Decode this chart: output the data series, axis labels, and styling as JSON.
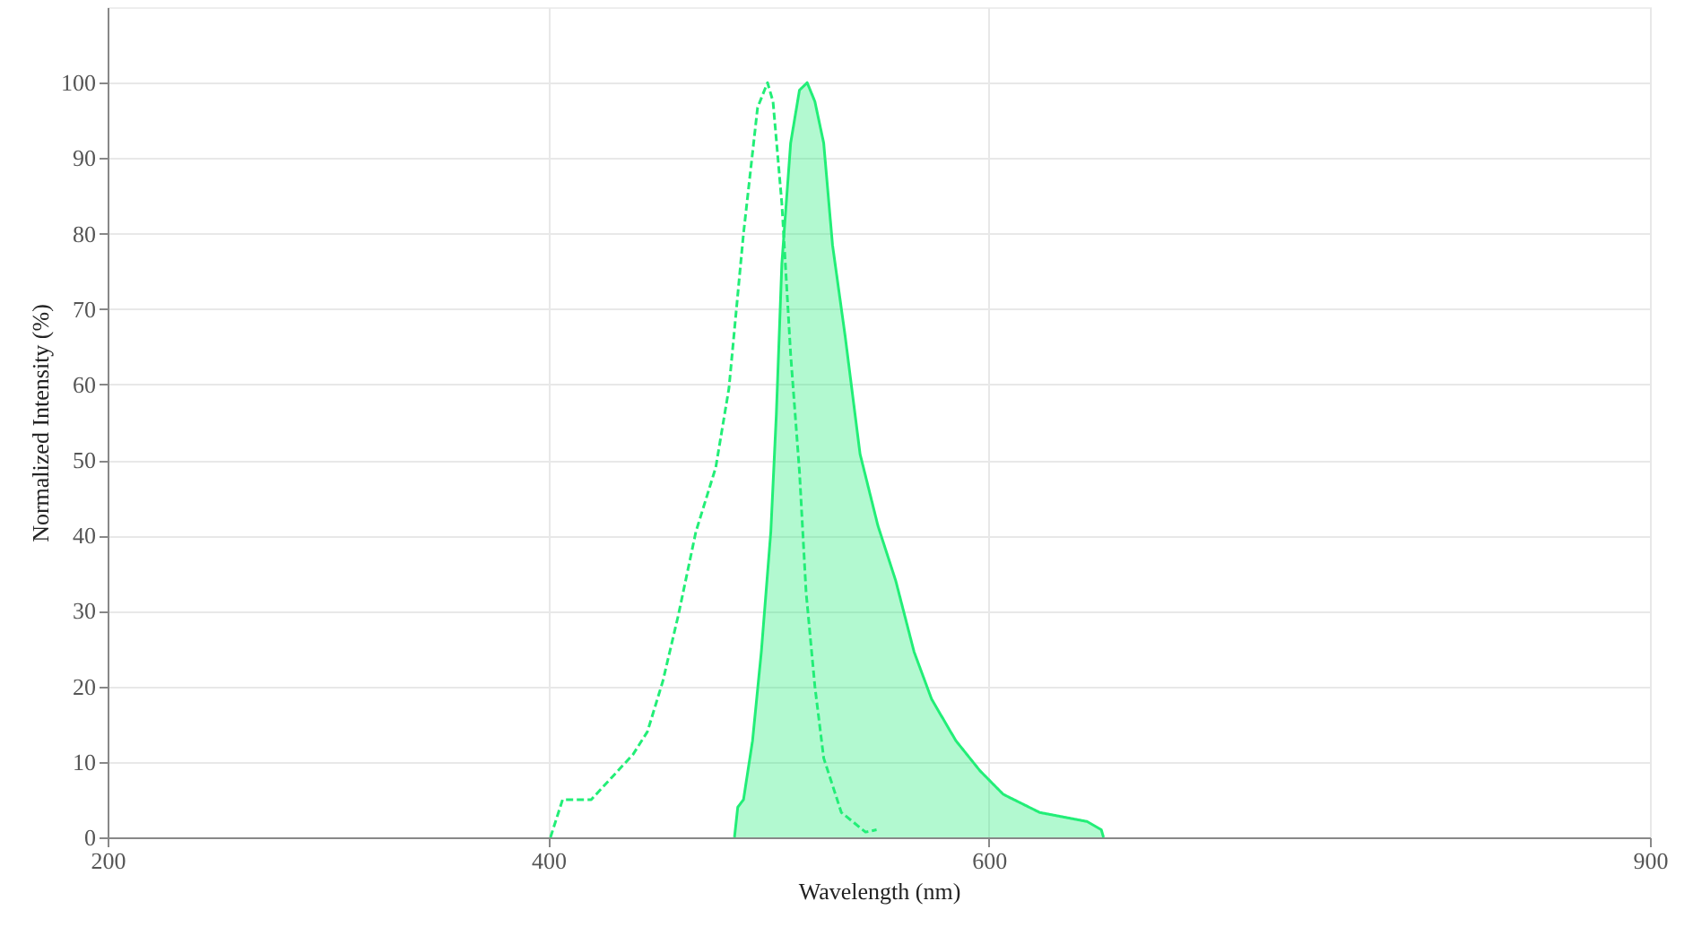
{
  "chart_data": {
    "type": "line",
    "xlabel": "Wavelength (nm)",
    "ylabel": "Normalized Intensity (%)",
    "xlim": [
      200,
      900
    ],
    "xticks": [
      200,
      400,
      600,
      900
    ],
    "ylim": [
      0,
      110
    ],
    "yticks": [
      0,
      10,
      20,
      30,
      40,
      50,
      60,
      70,
      80,
      90,
      100
    ],
    "grid": true,
    "series": [
      {
        "line_style": "dashed",
        "color": "#22ee77",
        "x": [
          401,
          406.5,
          419.5,
          429,
          438.5,
          445,
          452,
          459,
          467,
          476,
          482,
          488.6,
          495,
          499.5,
          502,
          506,
          510,
          514,
          517,
          521,
          525,
          533,
          544,
          549
        ],
        "values": [
          0,
          5,
          5,
          8,
          11,
          14,
          20.7,
          29.4,
          40.5,
          49,
          59.5,
          80,
          96.7,
          100,
          97.5,
          84,
          64,
          48.5,
          32.5,
          20,
          10.5,
          3.3,
          0.7,
          1
        ]
      },
      {
        "type": "area",
        "color": "#22ee77",
        "x": [
          484.5,
          486,
          488.6,
          492.7,
          496.7,
          501,
          503.5,
          506,
          510,
          514,
          517.5,
          521,
          525,
          529,
          534.7,
          541.5,
          549.6,
          557.7,
          566,
          574,
          585,
          596,
          606.5,
          623,
          644.5,
          651,
          652
        ],
        "values": [
          0,
          4,
          5,
          12.8,
          24.6,
          40.5,
          56,
          76,
          92,
          99,
          100,
          97.5,
          92,
          78.5,
          66.5,
          50.8,
          41.3,
          34,
          24.6,
          18.3,
          12.8,
          8.8,
          5.7,
          3.3,
          2.1,
          1,
          0
        ]
      }
    ]
  }
}
